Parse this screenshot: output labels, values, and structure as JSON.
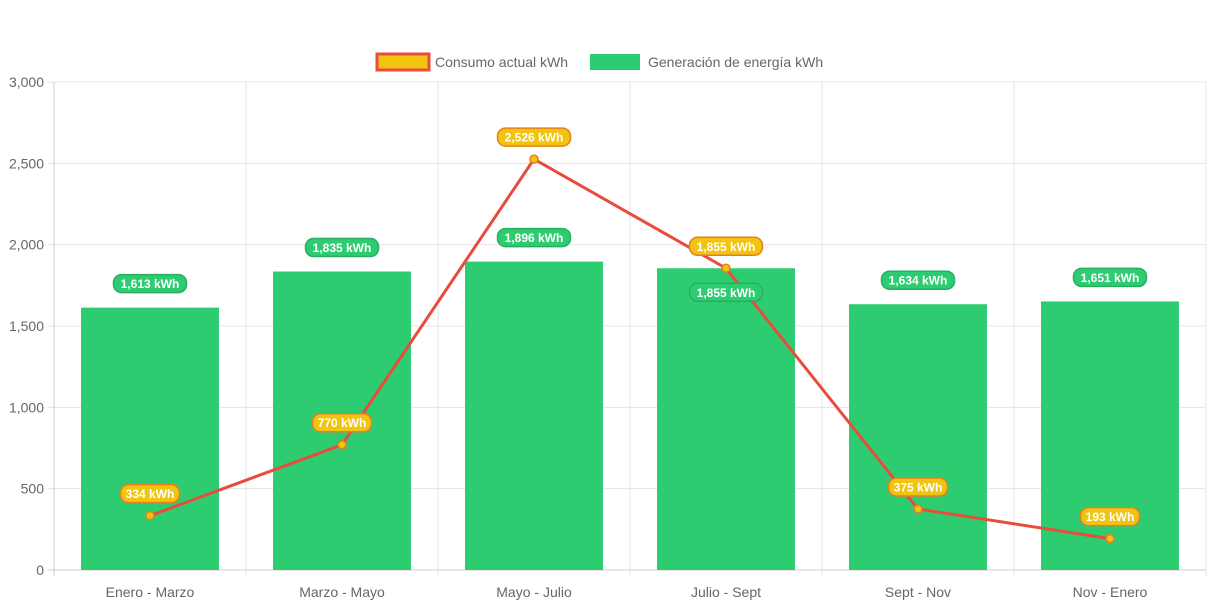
{
  "chart_data": {
    "type": "bar",
    "categories": [
      "Enero - Marzo",
      "Marzo - Mayo",
      "Mayo - Julio",
      "Julio - Sept",
      "Sept - Nov",
      "Nov - Enero"
    ],
    "series": [
      {
        "name": "Consumo actual kWh",
        "type": "line",
        "values": [
          334,
          770,
          2526,
          1855,
          375,
          193
        ],
        "labels": [
          "334 kWh",
          "770 kWh",
          "2,526 kWh",
          "1,855 kWh",
          "375 kWh",
          "193 kWh"
        ],
        "color": "#e74c3c",
        "fill": "#f1c40f"
      },
      {
        "name": "Generación de energía kWh",
        "type": "bar",
        "values": [
          1613,
          1835,
          1896,
          1855,
          1634,
          1651
        ],
        "labels": [
          "1,613 kWh",
          "1,835 kWh",
          "1,896 kWh",
          "1,855 kWh",
          "1,634 kWh",
          "1,651 kWh"
        ],
        "color": "#2ecc71"
      }
    ],
    "ylim": [
      0,
      3000
    ],
    "yticks": [
      "0",
      "500",
      "1,000",
      "1,500",
      "2,000",
      "2,500",
      "3,000"
    ],
    "grid": true,
    "legend": "top"
  }
}
